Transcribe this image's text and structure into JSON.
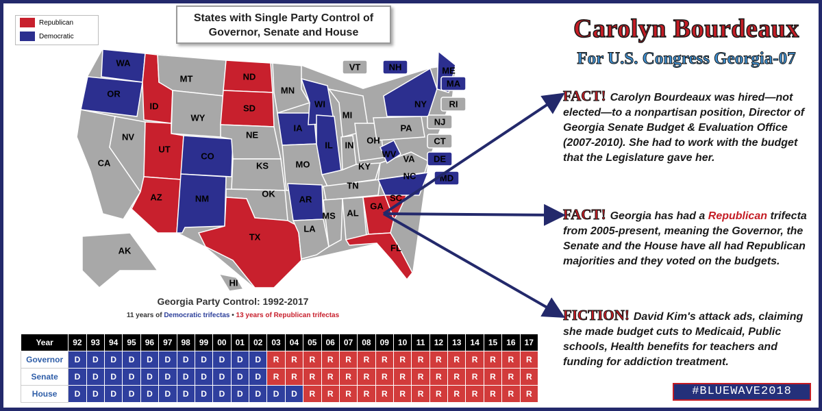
{
  "legend": {
    "republican_label": "Republican",
    "democratic_label": "Democratic",
    "republican_color": "#c8202d",
    "democratic_color": "#2c2f8f"
  },
  "map": {
    "title_line1": "States with Single Party Control of",
    "title_line2": "Governor, Senate and House",
    "colors": {
      "R": "#c8202d",
      "D": "#2c2f8f",
      "N": "#a8a8a8"
    },
    "states": [
      {
        "abbr": "WA",
        "party": "D"
      },
      {
        "abbr": "OR",
        "party": "D"
      },
      {
        "abbr": "CA",
        "party": "N"
      },
      {
        "abbr": "NV",
        "party": "N"
      },
      {
        "abbr": "ID",
        "party": "R"
      },
      {
        "abbr": "MT",
        "party": "N"
      },
      {
        "abbr": "WY",
        "party": "N"
      },
      {
        "abbr": "UT",
        "party": "R"
      },
      {
        "abbr": "AZ",
        "party": "R"
      },
      {
        "abbr": "CO",
        "party": "D"
      },
      {
        "abbr": "NM",
        "party": "D"
      },
      {
        "abbr": "ND",
        "party": "R"
      },
      {
        "abbr": "SD",
        "party": "R"
      },
      {
        "abbr": "NE",
        "party": "N"
      },
      {
        "abbr": "KS",
        "party": "N"
      },
      {
        "abbr": "OK",
        "party": "N"
      },
      {
        "abbr": "TX",
        "party": "R"
      },
      {
        "abbr": "MN",
        "party": "N"
      },
      {
        "abbr": "IA",
        "party": "D"
      },
      {
        "abbr": "MO",
        "party": "N"
      },
      {
        "abbr": "AR",
        "party": "D"
      },
      {
        "abbr": "LA",
        "party": "N"
      },
      {
        "abbr": "WI",
        "party": "D"
      },
      {
        "abbr": "IL",
        "party": "D"
      },
      {
        "abbr": "MI",
        "party": "N"
      },
      {
        "abbr": "IN",
        "party": "N"
      },
      {
        "abbr": "OH",
        "party": "N"
      },
      {
        "abbr": "KY",
        "party": "N"
      },
      {
        "abbr": "TN",
        "party": "N"
      },
      {
        "abbr": "MS",
        "party": "N"
      },
      {
        "abbr": "AL",
        "party": "N"
      },
      {
        "abbr": "GA",
        "party": "R"
      },
      {
        "abbr": "FL",
        "party": "R"
      },
      {
        "abbr": "SC",
        "party": "R"
      },
      {
        "abbr": "NC",
        "party": "D"
      },
      {
        "abbr": "VA",
        "party": "N"
      },
      {
        "abbr": "WV",
        "party": "D"
      },
      {
        "abbr": "PA",
        "party": "N"
      },
      {
        "abbr": "NY",
        "party": "D"
      },
      {
        "abbr": "ME",
        "party": "D"
      },
      {
        "abbr": "AK",
        "party": "N"
      },
      {
        "abbr": "HI",
        "party": "N"
      }
    ],
    "callouts": [
      {
        "abbr": "VT",
        "party": "N"
      },
      {
        "abbr": "NH",
        "party": "D"
      },
      {
        "abbr": "MA",
        "party": "D"
      },
      {
        "abbr": "RI",
        "party": "N"
      },
      {
        "abbr": "NJ",
        "party": "N"
      },
      {
        "abbr": "CT",
        "party": "N"
      },
      {
        "abbr": "DE",
        "party": "D"
      },
      {
        "abbr": "MD",
        "party": "D"
      }
    ]
  },
  "control": {
    "title": "Georgia Party Control: 1992-2017",
    "dem_text": "11 years of ",
    "dem_highlight": "Democratic trifectas",
    "separator": " • ",
    "rep_highlight": "13 years of Republican trifectas",
    "year_header": "Year",
    "years": [
      "92",
      "93",
      "94",
      "95",
      "96",
      "97",
      "98",
      "99",
      "00",
      "01",
      "02",
      "03",
      "04",
      "05",
      "06",
      "07",
      "08",
      "09",
      "10",
      "11",
      "12",
      "13",
      "14",
      "15",
      "16",
      "17"
    ],
    "rows": [
      {
        "label": "Governor",
        "values": [
          "D",
          "D",
          "D",
          "D",
          "D",
          "D",
          "D",
          "D",
          "D",
          "D",
          "D",
          "R",
          "R",
          "R",
          "R",
          "R",
          "R",
          "R",
          "R",
          "R",
          "R",
          "R",
          "R",
          "R",
          "R",
          "R"
        ]
      },
      {
        "label": "Senate",
        "values": [
          "D",
          "D",
          "D",
          "D",
          "D",
          "D",
          "D",
          "D",
          "D",
          "D",
          "D",
          "R",
          "R",
          "R",
          "R",
          "R",
          "R",
          "R",
          "R",
          "R",
          "R",
          "R",
          "R",
          "R",
          "R",
          "R"
        ]
      },
      {
        "label": "House",
        "values": [
          "D",
          "D",
          "D",
          "D",
          "D",
          "D",
          "D",
          "D",
          "D",
          "D",
          "D",
          "D",
          "D",
          "R",
          "R",
          "R",
          "R",
          "R",
          "R",
          "R",
          "R",
          "R",
          "R",
          "R",
          "R",
          "R"
        ]
      }
    ]
  },
  "candidate": {
    "name": "Carolyn Bourdeaux",
    "subtitle": "For U.S. Congress Georgia-07"
  },
  "facts": {
    "fact1_tag": "FACT!",
    "fact1_text": "Carolyn Bourdeaux was hired—not elected—to a nonpartisan position, Director of Georgia Senate Budget & Evaluation Office  (2007-2010). She had to work with the budget that the Legislature gave her.",
    "fact2_tag": "FACT!",
    "fact2_pre": "Georgia has had a ",
    "fact2_highlight": "Republican",
    "fact2_post": " trifecta from 2005-present, meaning the Governor, the Senate and the House have all had Republican majorities and they voted on the budgets.",
    "fact3_tag": "FICTION!",
    "fact3_text": "David Kim's attack ads, claiming she made budget cuts to Medicaid, Public schools, Health benefits for teachers and funding for addiction treatment."
  },
  "hashtag": "#BLUEWAVE2018",
  "arrow_color": "#23296b"
}
